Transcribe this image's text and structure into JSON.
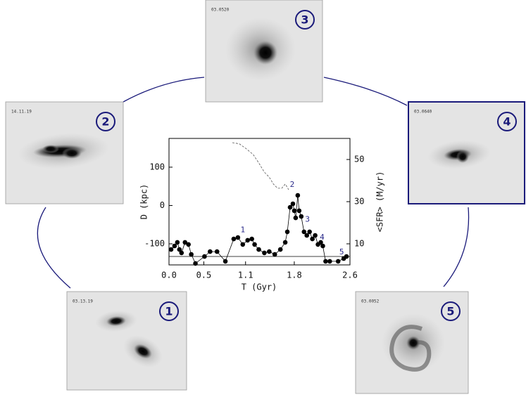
{
  "chart_data": {
    "type": "scatter",
    "xlabel": "T (Gyr)",
    "ylabel": "D (kpc)",
    "y2label": "<SFR> (M/yr)",
    "xlim": [
      0,
      2.6
    ],
    "xticks": [
      {
        "value": 0,
        "label": "0.0"
      },
      0.5,
      1.1,
      1.8,
      2.6
    ],
    "ylim": [
      -155,
      175
    ],
    "yticks": [
      -100,
      0,
      100
    ],
    "y2lim": [
      0,
      60
    ],
    "y2ticks": [
      10,
      30,
      50
    ],
    "series": [
      {
        "kind": "dots",
        "axis": "y2",
        "color": "#000000",
        "x": [
          0.03,
          0.08,
          0.12,
          0.15,
          0.18,
          0.23,
          0.28,
          0.32,
          0.38,
          0.51,
          0.59,
          0.69,
          0.81,
          0.93,
          0.99,
          1.06,
          1.13,
          1.19,
          1.23,
          1.29,
          1.37,
          1.44,
          1.52,
          1.6,
          1.67,
          1.7,
          1.74,
          1.78,
          1.8,
          1.82,
          1.85,
          1.87,
          1.9,
          1.94,
          1.98,
          2.02,
          2.06,
          2.1,
          2.14,
          2.18,
          2.21,
          2.25,
          2.31,
          2.43,
          2.51,
          2.55
        ],
        "values": [
          7.3,
          9.0,
          10.7,
          7.3,
          5.7,
          10.7,
          9.7,
          5.0,
          0.7,
          4.0,
          6.3,
          6.3,
          1.7,
          12.3,
          13.0,
          9.7,
          11.7,
          12.3,
          9.7,
          7.3,
          5.7,
          6.3,
          5.0,
          7.3,
          10.7,
          15.7,
          27.3,
          29.0,
          25.7,
          22.3,
          33.0,
          25.7,
          23.0,
          15.7,
          14.0,
          15.7,
          12.3,
          14.0,
          9.7,
          10.7,
          9.0,
          1.7,
          1.7,
          1.7,
          3.0,
          4.0
        ]
      },
      {
        "kind": "dashed",
        "axis": "y",
        "color": "#555555",
        "x": [
          0.91,
          1.01,
          1.11,
          1.21,
          1.29,
          1.37,
          1.44,
          1.5,
          1.56,
          1.62,
          1.67,
          1.72
        ],
        "values": [
          164,
          161,
          148,
          133,
          111,
          87,
          74,
          56,
          45,
          45,
          56,
          41
        ]
      },
      {
        "kind": "line",
        "axis": "y",
        "color": "#000000",
        "x": [
          0,
          2.6
        ],
        "values": [
          -133,
          -133
        ]
      }
    ],
    "annotations": [
      {
        "text": "1",
        "x": 1.06,
        "y": 16.5
      },
      {
        "text": "2",
        "x": 1.77,
        "y": 38
      },
      {
        "text": "3",
        "x": 1.99,
        "y": 21.5
      },
      {
        "text": "4",
        "x": 2.2,
        "y": 13
      },
      {
        "text": "5",
        "x": 2.48,
        "y": 6
      }
    ]
  },
  "panels": [
    {
      "number": "1",
      "label": "03.13.19"
    },
    {
      "number": "2",
      "label": "14.11.19"
    },
    {
      "number": "3",
      "label": "03.0520"
    },
    {
      "number": "4",
      "label": "03.0640"
    },
    {
      "number": "5",
      "label": "03.0052"
    }
  ]
}
